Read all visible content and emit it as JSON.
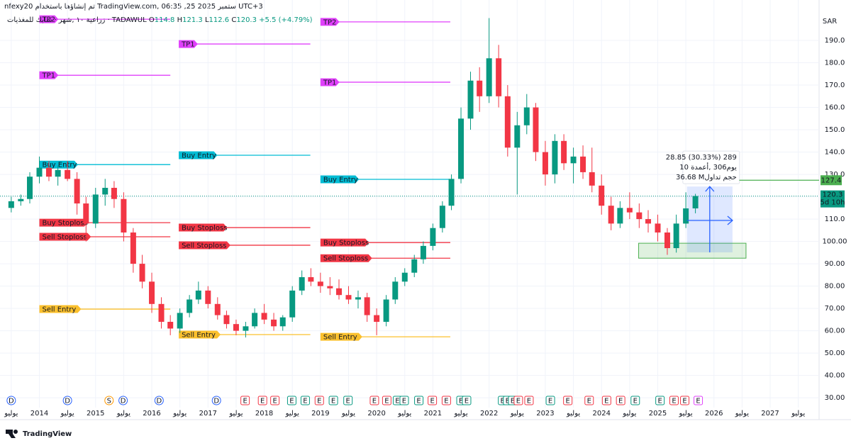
{
  "header": {
    "line1": "nfexy20 تم إنشاؤها باستخدام TradingView.com, 06:35 ,25 ستمبر 2025 UTC+3",
    "symbol": "زراعية ١٠ ,شهر · سابك للمغذيات · TADAWUL",
    "ohlc_labels": [
      "O",
      "H",
      "L",
      "C"
    ],
    "change": "+5.5 (+4.79%)",
    "currency": "SAR",
    "countdown": "5d 10h"
  },
  "footer": {
    "brand": "TradingView"
  },
  "chart_data": {
    "type": "candlestick",
    "x": [
      2013.5,
      2013.67,
      2013.83,
      2014.0,
      2014.17,
      2014.33,
      2014.5,
      2014.67,
      2014.83,
      2015.0,
      2015.17,
      2015.33,
      2015.5,
      2015.67,
      2015.83,
      2016.0,
      2016.17,
      2016.33,
      2016.5,
      2016.67,
      2016.83,
      2017.0,
      2017.17,
      2017.33,
      2017.5,
      2017.67,
      2017.83,
      2018.0,
      2018.17,
      2018.33,
      2018.5,
      2018.67,
      2018.83,
      2019.0,
      2019.17,
      2019.33,
      2019.5,
      2019.67,
      2019.83,
      2020.0,
      2020.17,
      2020.33,
      2020.5,
      2020.67,
      2020.83,
      2021.0,
      2021.17,
      2021.33,
      2021.5,
      2021.67,
      2021.83,
      2022.0,
      2022.17,
      2022.33,
      2022.5,
      2022.67,
      2022.83,
      2023.0,
      2023.17,
      2023.33,
      2023.5,
      2023.67,
      2023.83,
      2024.0,
      2024.17,
      2024.33,
      2024.5,
      2024.67,
      2024.83,
      2025.0,
      2025.17,
      2025.33,
      2025.5,
      2025.67
    ],
    "open": [
      115,
      118,
      119,
      129,
      133,
      129,
      132,
      128,
      117,
      108,
      121,
      124,
      119,
      104,
      90,
      82,
      72,
      64,
      61,
      68,
      74,
      78,
      72,
      67,
      63,
      60,
      62,
      68,
      65,
      62,
      66,
      78,
      84,
      82,
      80,
      79,
      76,
      74,
      75,
      67,
      64,
      74,
      82,
      86,
      92,
      98,
      106,
      116,
      128,
      155,
      172,
      165,
      182,
      165,
      142,
      152,
      160,
      140,
      130,
      145,
      135,
      138,
      131,
      125,
      116,
      108,
      115,
      113,
      110,
      108,
      104,
      97,
      108,
      114.8
    ],
    "high": [
      120,
      121,
      131,
      138,
      136,
      134,
      136,
      131,
      120,
      124,
      128,
      127,
      122,
      106,
      94,
      86,
      75,
      67,
      70,
      76,
      82,
      80,
      75,
      69,
      65,
      64,
      70,
      72,
      68,
      67,
      80,
      87,
      88,
      86,
      84,
      83,
      80,
      78,
      77,
      70,
      76,
      84,
      88,
      94,
      100,
      108,
      118,
      130,
      160,
      176,
      178,
      200,
      188,
      170,
      158,
      166,
      162,
      145,
      148,
      148,
      142,
      143,
      142,
      130,
      120,
      118,
      122,
      117,
      114,
      112,
      106,
      112,
      122,
      121.3
    ],
    "low": [
      113,
      116,
      117,
      126,
      127,
      125,
      127,
      112,
      100,
      106,
      116,
      115,
      100,
      86,
      79,
      68,
      61,
      58,
      59,
      66,
      72,
      70,
      65,
      61,
      58,
      57,
      61,
      63,
      60,
      60,
      64,
      76,
      80,
      77,
      76,
      74,
      72,
      70,
      64,
      58,
      62,
      72,
      80,
      84,
      90,
      96,
      104,
      114,
      126,
      150,
      158,
      162,
      160,
      138,
      121,
      148,
      136,
      125,
      126,
      132,
      126,
      128,
      122,
      112,
      105,
      106,
      110,
      106,
      104,
      100,
      94,
      95,
      106,
      112.6
    ],
    "close": [
      118,
      119,
      129,
      133,
      129,
      132,
      128,
      117,
      108,
      121,
      124,
      119,
      104,
      90,
      82,
      72,
      64,
      61,
      68,
      74,
      78,
      72,
      67,
      63,
      60,
      62,
      68,
      65,
      62,
      66,
      78,
      84,
      82,
      80,
      79,
      76,
      74,
      75,
      67,
      64,
      74,
      82,
      86,
      92,
      98,
      106,
      116,
      128,
      155,
      172,
      165,
      182,
      165,
      142,
      152,
      160,
      140,
      130,
      145,
      135,
      138,
      131,
      125,
      116,
      108,
      115,
      113,
      110,
      108,
      104,
      97,
      108,
      114.8,
      120.3
    ],
    "up_color": "#089981",
    "down_color": "#f23645",
    "xlim": [
      2013.3,
      2027.87
    ],
    "xticks": [
      {
        "value": 2013.5,
        "label": "يوليو"
      },
      2014,
      {
        "value": 2014.5,
        "label": "يوليو"
      },
      2015,
      {
        "value": 2015.5,
        "label": "يوليو"
      },
      2016,
      {
        "value": 2016.5,
        "label": "يوليو"
      },
      2017,
      {
        "value": 2017.5,
        "label": "يوليو"
      },
      2018,
      {
        "value": 2018.5,
        "label": "يوليو"
      },
      2019,
      {
        "value": 2019.5,
        "label": "يوليو"
      },
      2020,
      {
        "value": 2020.5,
        "label": "يوليو"
      },
      2021,
      {
        "value": 2021.5,
        "label": "يوليو"
      },
      2022,
      {
        "value": 2022.5,
        "label": "يوليو"
      },
      2023,
      {
        "value": 2023.5,
        "label": "يوليو"
      },
      2024,
      {
        "value": 2024.5,
        "label": "يوليو"
      },
      2025,
      {
        "value": 2025.5,
        "label": "يوليو"
      },
      2026,
      {
        "value": 2026.5,
        "label": "يوليو"
      },
      2027,
      {
        "value": 2027.5,
        "label": "يوليو"
      }
    ],
    "ylim": [
      25.6,
      208.1
    ],
    "yticks": [
      {
        "value": 30,
        "label": "30.00"
      },
      {
        "value": 40,
        "label": "40.00"
      },
      {
        "value": 50,
        "label": "50.00"
      },
      {
        "value": 60,
        "label": "60.00"
      },
      {
        "value": 70,
        "label": "70.00"
      },
      {
        "value": 80,
        "label": "80.00"
      },
      {
        "value": 90,
        "label": "90.00"
      },
      {
        "value": 100,
        "label": "100.00"
      },
      {
        "value": 110,
        "label": "110.0"
      },
      {
        "value": 120,
        "label": "120.0"
      },
      {
        "value": 130,
        "label": "130.0"
      },
      {
        "value": 140,
        "label": "140.0"
      },
      {
        "value": 150,
        "label": "150.0"
      },
      {
        "value": 160,
        "label": "160.0"
      },
      {
        "value": 170,
        "label": "170.0"
      },
      {
        "value": 180,
        "label": "180.0"
      },
      {
        "value": 190,
        "label": "190.0"
      }
    ],
    "grid": true,
    "drawings": [
      {
        "x0": 2014.0,
        "x1": 2016.33,
        "levels": [
          {
            "label": "TP2",
            "value": 199.5,
            "color": "#e040fb"
          },
          {
            "label": "TP1",
            "value": 174.4,
            "color": "#e040fb"
          },
          {
            "label": "Buy Entry",
            "value": 134.4,
            "color": "#00bcd4"
          },
          {
            "label": "Buy Stoploss",
            "value": 108.4,
            "color": "#f23645"
          },
          {
            "label": "Sell Stoploss",
            "value": 102.1,
            "color": "#f23645"
          },
          {
            "label": "Sell Entry",
            "value": 69.7,
            "color": "#fbc02d"
          }
        ]
      },
      {
        "x0": 2016.48,
        "x1": 2018.82,
        "levels": [
          {
            "label": "TP1",
            "value": 188.4,
            "color": "#e040fb"
          },
          {
            "label": "Buy Entry",
            "value": 138.6,
            "color": "#00bcd4"
          },
          {
            "label": "Buy Stoploss",
            "value": 106.2,
            "color": "#f23645"
          },
          {
            "label": "Sell Stoploss",
            "value": 98.3,
            "color": "#f23645"
          },
          {
            "label": "Sell Entry",
            "value": 58.3,
            "color": "#fbc02d"
          }
        ]
      },
      {
        "x0": 2019.0,
        "x1": 2021.31,
        "levels": [
          {
            "label": "TP2",
            "value": 198.3,
            "color": "#e040fb"
          },
          {
            "label": "TP1",
            "value": 171.3,
            "color": "#e040fb"
          },
          {
            "label": "Buy Entry",
            "value": 127.8,
            "color": "#00bcd4"
          },
          {
            "label": "Buy Stoploss",
            "value": 99.5,
            "color": "#f23645"
          },
          {
            "label": "Sell Stoploss",
            "value": 92.5,
            "color": "#f23645"
          },
          {
            "label": "Sell Entry",
            "value": 57.3,
            "color": "#fbc02d"
          }
        ]
      }
    ],
    "target_line": {
      "value": 127.4,
      "x0": 2026.45,
      "color": "#4caf50"
    },
    "position": {
      "x0": 2025.52,
      "x1": 2026.33,
      "top": 124.6,
      "bottom": 95.1,
      "mid": 109.4,
      "zone": {
        "x0": 2024.66,
        "x1": 2026.57,
        "top": 99.2,
        "bottom": 92.5
      },
      "tooltip": [
        "28.85 (30.33%) 289",
        "يوم306 ,أعمدة 10",
        "36.68 Mحجم تداول"
      ]
    },
    "events": {
      "x": [
        2013.5,
        2014.5,
        2015.24,
        2015.49,
        2016.13,
        2017.15,
        2017.66,
        2017.97,
        2018.19,
        2018.49,
        2018.73,
        2018.98,
        2019.23,
        2019.49,
        2019.96,
        2020.18,
        2020.37,
        2020.49,
        2020.75,
        2020.99,
        2021.24,
        2021.5,
        2021.6,
        2022.24,
        2022.33,
        2022.42,
        2022.52,
        2022.71,
        2023.09,
        2023.4,
        2023.78,
        2024.09,
        2024.34,
        2024.6,
        2025.04,
        2025.29,
        2025.48,
        2025.72
      ],
      "labels": [
        "D",
        "D",
        "S",
        "D",
        "D",
        "D",
        "E",
        "E",
        "E",
        "E",
        "E",
        "E",
        "E",
        "E",
        "E",
        "E",
        "E",
        "E",
        "E",
        "E",
        "E",
        "E",
        "E",
        "E",
        "E",
        "E",
        "E",
        "E",
        "E",
        "E",
        "E",
        "E",
        "E",
        "E",
        "E",
        "E",
        "E",
        "E"
      ],
      "colors": [
        "#2962ff",
        "#2962ff",
        "#ff9800",
        "#2962ff",
        "#2962ff",
        "#2962ff",
        "#f23645",
        "#f23645",
        "#f23645",
        "#089981",
        "#089981",
        "#f23645",
        "#089981",
        "#089981",
        "#f23645",
        "#f23645",
        "#089981",
        "#089981",
        "#089981",
        "#f23645",
        "#f23645",
        "#089981",
        "#089981",
        "#089981",
        "#089981",
        "#089981",
        "#f23645",
        "#f23645",
        "#089981",
        "#f23645",
        "#f23645",
        "#f23645",
        "#f23645",
        "#089981",
        "#089981",
        "#f23645",
        "#f23645",
        "#e040fb"
      ]
    }
  }
}
